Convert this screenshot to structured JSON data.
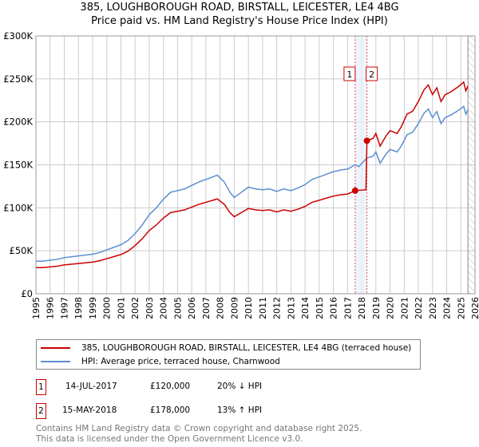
{
  "header": {
    "title_line1": "385, LOUGHBOROUGH ROAD, BIRSTALL, LEICESTER, LE4 4BG",
    "title_line2": "Price paid vs. HM Land Registry's House Price Index (HPI)"
  },
  "chart_data": {
    "type": "line",
    "title": "385, LOUGHBOROUGH ROAD, BIRSTALL, LEICESTER, LE4 4BG - Price paid vs. HM Land Registry's House Price Index (HPI)",
    "xlim": [
      1995,
      2026
    ],
    "ylim": [
      0,
      300000
    ],
    "x_ticks": [
      "1995",
      "1996",
      "1997",
      "1998",
      "1999",
      "2000",
      "2001",
      "2002",
      "2003",
      "2004",
      "2005",
      "2006",
      "2007",
      "2008",
      "2009",
      "2010",
      "2011",
      "2012",
      "2013",
      "2014",
      "2015",
      "2016",
      "2017",
      "2018",
      "2019",
      "2020",
      "2021",
      "2022",
      "2023",
      "2024",
      "2025",
      "2026"
    ],
    "y_ticks": [
      {
        "v": 0,
        "label": "£0"
      },
      {
        "v": 50000,
        "label": "£50K"
      },
      {
        "v": 100000,
        "label": "£100K"
      },
      {
        "v": 150000,
        "label": "£150K"
      },
      {
        "v": 200000,
        "label": "£200K"
      },
      {
        "v": 250000,
        "label": "£250K"
      },
      {
        "v": 300000,
        "label": "£300K"
      }
    ],
    "grid": true,
    "series": [
      {
        "name": "385, LOUGHBOROUGH ROAD, BIRSTALL, LEICESTER, LE4 4BG (terraced house)",
        "color": "#cc0000",
        "x": [
          1995,
          1995.5,
          1996,
          1996.5,
          1997,
          1997.5,
          1998,
          1998.5,
          1999,
          1999.5,
          2000,
          2000.5,
          2001,
          2001.5,
          2002,
          2002.5,
          2003,
          2003.5,
          2004,
          2004.5,
          2005,
          2005.5,
          2006,
          2006.5,
          2007,
          2007.5,
          2007.8,
          2008.3,
          2008.7,
          2009,
          2009.5,
          2010,
          2010.5,
          2011,
          2011.5,
          2012,
          2012.5,
          2013,
          2013.5,
          2014,
          2014.5,
          2015,
          2015.5,
          2016,
          2016.5,
          2017,
          2017.54,
          2018.3,
          2018.37,
          2018.8,
          2019,
          2019.3,
          2019.7,
          2020,
          2020.5,
          2020.8,
          2021.2,
          2021.6,
          2022,
          2022.4,
          2022.7,
          2023,
          2023.3,
          2023.6,
          2023.9,
          2024.3,
          2024.8,
          2025.2,
          2025.35,
          2025.5
        ],
        "y": [
          30400,
          30400,
          31200,
          32000,
          33600,
          34400,
          35200,
          36000,
          36800,
          38400,
          40800,
          43200,
          45600,
          49600,
          56000,
          64000,
          73600,
          80000,
          88000,
          94400,
          96000,
          97600,
          100800,
          104000,
          106400,
          108800,
          110400,
          104000,
          94400,
          89600,
          94400,
          99200,
          97600,
          96800,
          97600,
          95200,
          97600,
          96000,
          98400,
          101600,
          106400,
          108800,
          111200,
          113600,
          115200,
          116000,
          120000,
          121000,
          178000,
          180800,
          186500,
          171800,
          183100,
          189800,
          186500,
          194400,
          209000,
          212400,
          223700,
          237300,
          243000,
          231700,
          239600,
          223700,
          231700,
          235000,
          240700,
          246300,
          236000,
          241800
        ]
      },
      {
        "name": "HPI: Average price, terraced house, Charnwood",
        "color": "#5b8fd0",
        "x": [
          1995,
          1995.5,
          1996,
          1996.5,
          1997,
          1997.5,
          1998,
          1998.5,
          1999,
          1999.5,
          2000,
          2000.5,
          2001,
          2001.5,
          2002,
          2002.5,
          2003,
          2003.5,
          2004,
          2004.5,
          2005,
          2005.5,
          2006,
          2006.5,
          2007,
          2007.5,
          2007.8,
          2008.3,
          2008.7,
          2009,
          2009.5,
          2010,
          2010.5,
          2011,
          2011.5,
          2012,
          2012.5,
          2013,
          2013.5,
          2014,
          2014.5,
          2015,
          2015.5,
          2016,
          2016.5,
          2017,
          2017.54,
          2017.8,
          2018.37,
          2018.8,
          2019,
          2019.3,
          2019.7,
          2020,
          2020.5,
          2020.8,
          2021.2,
          2021.6,
          2022,
          2022.4,
          2022.7,
          2023,
          2023.3,
          2023.6,
          2023.9,
          2024.3,
          2024.8,
          2025.2,
          2025.35,
          2025.5
        ],
        "y": [
          38000,
          38000,
          39000,
          40000,
          42000,
          43000,
          44000,
          45000,
          46000,
          48000,
          51000,
          54000,
          57000,
          62000,
          70000,
          80000,
          92000,
          100000,
          110000,
          118000,
          120000,
          122000,
          126000,
          130000,
          133000,
          136000,
          138000,
          130000,
          118000,
          112000,
          118000,
          124000,
          122000,
          121000,
          122000,
          119000,
          122000,
          120000,
          123000,
          127000,
          133000,
          136000,
          139000,
          142000,
          144000,
          145000,
          150000,
          148000,
          158000,
          160000,
          165000,
          152000,
          162000,
          168000,
          165000,
          172000,
          185000,
          188000,
          198000,
          210000,
          215000,
          205000,
          212000,
          198000,
          205000,
          208000,
          213000,
          218000,
          209000,
          214000
        ]
      }
    ],
    "sales": [
      {
        "id": "1",
        "x": 2017.54,
        "y": 120000
      },
      {
        "id": "2",
        "x": 2018.37,
        "y": 178000
      }
    ],
    "forecast_start": 2025.5
  },
  "legend": {
    "items": [
      {
        "label": "385, LOUGHBOROUGH ROAD, BIRSTALL, LEICESTER, LE4 4BG (terraced house)",
        "color": "#cc0000"
      },
      {
        "label": "HPI: Average price, terraced house, Charnwood",
        "color": "#5b8fd0"
      }
    ]
  },
  "table": [
    {
      "id": "1",
      "date": "14-JUL-2017",
      "price": "£120,000",
      "hpi": "20% ↓ HPI"
    },
    {
      "id": "2",
      "date": "15-MAY-2018",
      "price": "£178,000",
      "hpi": "13% ↑ HPI"
    }
  ],
  "footer": {
    "line1": "Contains HM Land Registry data © Crown copyright and database right 2025.",
    "line2": "This data is licensed under the Open Government Licence v3.0."
  }
}
